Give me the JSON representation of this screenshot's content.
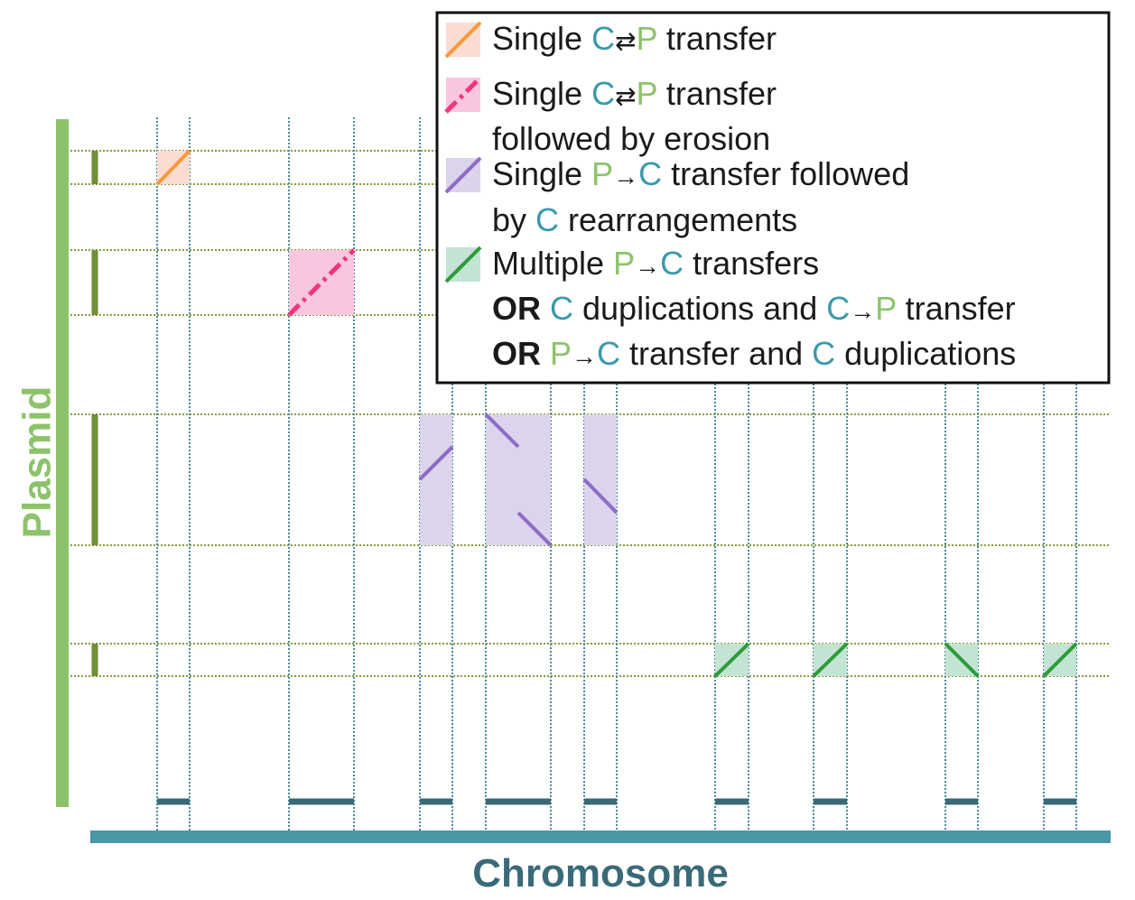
{
  "colors": {
    "plasmid_green": "#8cc36a",
    "plasmid_dark_green": "#6f8f3a",
    "chromosome_teal": "#4a98a6",
    "chromosome_dark": "#3a6a78",
    "grid_green": "#8a9a3a",
    "grid_blue": "#4d8a9a",
    "orange": "#f59a3a",
    "orange_fill": "#fbdcd3",
    "pink": "#f0357f",
    "pink_fill": "#f8c6de",
    "purple": "#8c6cc4",
    "purple_fill": "#dcd3ec",
    "green": "#2e9a3a",
    "green_fill": "#c3e3d3",
    "c_letter": "#3a9aaa",
    "p_letter": "#8cc36a"
  },
  "axes": {
    "y_title": "Plasmid",
    "x_title": "Chromosome"
  },
  "legend": {
    "items": [
      {
        "icon": "orange-solid-line-icon",
        "lines": [
          [
            {
              "t": "Single "
            },
            {
              "t": "C",
              "c": "c"
            },
            {
              "t": "⇄",
              "sym": true
            },
            {
              "t": "P",
              "c": "p"
            },
            {
              "t": " transfer"
            }
          ]
        ]
      },
      {
        "icon": "pink-dashdot-line-icon",
        "lines": [
          [
            {
              "t": "Single "
            },
            {
              "t": "C",
              "c": "c"
            },
            {
              "t": "⇄",
              "sym": true
            },
            {
              "t": "P",
              "c": "p"
            },
            {
              "t": " transfer"
            }
          ],
          [
            {
              "t": "followed by erosion"
            }
          ]
        ]
      },
      {
        "icon": "purple-line-icon",
        "lines": [
          [
            {
              "t": "Single "
            },
            {
              "t": "P",
              "c": "p"
            },
            {
              "t": "→",
              "sym": true
            },
            {
              "t": "C",
              "c": "c"
            },
            {
              "t": " transfer followed"
            }
          ],
          [
            {
              "t": "by "
            },
            {
              "t": "C",
              "c": "c"
            },
            {
              "t": " rearrangements"
            }
          ]
        ]
      },
      {
        "icon": "green-line-icon",
        "lines": [
          [
            {
              "t": "Multiple "
            },
            {
              "t": "P",
              "c": "p"
            },
            {
              "t": "→",
              "sym": true
            },
            {
              "t": "C",
              "c": "c"
            },
            {
              "t": " transfers"
            }
          ],
          [
            {
              "t": "OR",
              "b": true
            },
            {
              "t": " "
            },
            {
              "t": "C",
              "c": "c"
            },
            {
              "t": " duplications and "
            },
            {
              "t": "C",
              "c": "c"
            },
            {
              "t": "→",
              "sym": true
            },
            {
              "t": "P",
              "c": "p"
            },
            {
              "t": " transfer"
            }
          ],
          [
            {
              "t": "OR",
              "b": true
            },
            {
              "t": " "
            },
            {
              "t": "P",
              "c": "p"
            },
            {
              "t": "→",
              "sym": true
            },
            {
              "t": "C",
              "c": "c"
            },
            {
              "t": " transfer and "
            },
            {
              "t": "C",
              "c": "c"
            },
            {
              "t": " duplications"
            }
          ]
        ]
      }
    ]
  }
}
